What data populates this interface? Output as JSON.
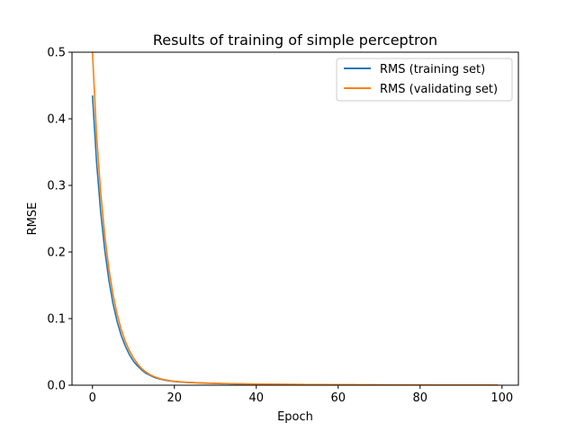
{
  "chart_data": {
    "type": "line",
    "title": "Results of training of simple perceptron",
    "xlabel": "Epoch",
    "ylabel": "RMSE",
    "xlim": [
      -5,
      104
    ],
    "ylim": [
      0,
      0.5
    ],
    "xticks": [
      0,
      20,
      40,
      60,
      80,
      100
    ],
    "yticks": [
      0.0,
      0.1,
      0.2,
      0.3,
      0.4,
      0.5
    ],
    "xtick_labels": [
      "0",
      "20",
      "40",
      "60",
      "80",
      "100"
    ],
    "ytick_labels": [
      "0.0",
      "0.1",
      "0.2",
      "0.3",
      "0.4",
      "0.5"
    ],
    "grid": false,
    "legend_position": "top-right",
    "x": [
      0,
      1,
      2,
      3,
      4,
      5,
      6,
      7,
      8,
      9,
      10,
      11,
      12,
      13,
      14,
      15,
      16,
      17,
      18,
      19,
      20,
      21,
      22,
      23,
      24,
      25,
      26,
      27,
      28,
      29,
      30,
      31,
      32,
      33,
      34,
      35,
      36,
      37,
      38,
      39,
      40,
      41,
      42,
      43,
      44,
      45,
      46,
      47,
      48,
      49,
      50,
      51,
      52,
      53,
      54,
      55,
      56,
      57,
      58,
      59,
      60,
      61,
      62,
      63,
      64,
      65,
      66,
      67,
      68,
      69,
      70,
      71,
      72,
      73,
      74,
      75,
      76,
      77,
      78,
      79,
      80,
      81,
      82,
      83,
      84,
      85,
      86,
      87,
      88,
      89,
      90,
      91,
      92,
      93,
      94,
      95,
      96,
      97,
      98,
      99
    ],
    "series": [
      {
        "name": "RMS (training set)",
        "color": "#1f77b4",
        "values": [
          0.435,
          0.335,
          0.26,
          0.203,
          0.158,
          0.123,
          0.096,
          0.075,
          0.059,
          0.046,
          0.036,
          0.029,
          0.023,
          0.018,
          0.015,
          0.012,
          0.01,
          0.0085,
          0.0072,
          0.0063,
          0.0056,
          0.005,
          0.0046,
          0.0042,
          0.0039,
          0.0036,
          0.0034,
          0.0032,
          0.003,
          0.0028,
          0.0026,
          0.0025,
          0.0023,
          0.0022,
          0.0021,
          0.002,
          0.0019,
          0.0018,
          0.0017,
          0.0016,
          0.0015,
          0.0014,
          0.0014,
          0.0013,
          0.0012,
          0.0012,
          0.0011,
          0.0011,
          0.001,
          0.001,
          0.0009,
          0.0009,
          0.0008,
          0.0008,
          0.0008,
          0.0007,
          0.0007,
          0.0007,
          0.0006,
          0.0006,
          0.0006,
          0.0006,
          0.0005,
          0.0005,
          0.0005,
          0.0005,
          0.0005,
          0.0004,
          0.0004,
          0.0004,
          0.0004,
          0.0004,
          0.0004,
          0.0003,
          0.0003,
          0.0003,
          0.0003,
          0.0003,
          0.0003,
          0.0003,
          0.0003,
          0.0003,
          0.0002,
          0.0002,
          0.0002,
          0.0002,
          0.0002,
          0.0002,
          0.0002,
          0.0002,
          0.0002,
          0.0002,
          0.0002,
          0.0002,
          0.0002,
          0.0001,
          0.0001,
          0.0001,
          0.0001,
          0.0001
        ]
      },
      {
        "name": "RMS (validating set)",
        "color": "#ff7f0e",
        "values": [
          0.5,
          0.375,
          0.29,
          0.225,
          0.175,
          0.137,
          0.107,
          0.084,
          0.066,
          0.052,
          0.041,
          0.032,
          0.025,
          0.02,
          0.016,
          0.013,
          0.0108,
          0.009,
          0.0077,
          0.0067,
          0.0059,
          0.0053,
          0.0048,
          0.0044,
          0.0041,
          0.0038,
          0.0036,
          0.0034,
          0.0032,
          0.003,
          0.0028,
          0.0027,
          0.0025,
          0.0024,
          0.0023,
          0.0022,
          0.0021,
          0.002,
          0.0019,
          0.0018,
          0.0017,
          0.0016,
          0.0016,
          0.0015,
          0.0014,
          0.0014,
          0.0013,
          0.0013,
          0.0012,
          0.0012,
          0.0011,
          0.0011,
          0.001,
          0.001,
          0.001,
          0.0009,
          0.0009,
          0.0009,
          0.0008,
          0.0008,
          0.0008,
          0.0007,
          0.0007,
          0.0007,
          0.0007,
          0.0006,
          0.0006,
          0.0006,
          0.0006,
          0.0006,
          0.0005,
          0.0005,
          0.0005,
          0.0005,
          0.0005,
          0.0005,
          0.0004,
          0.0004,
          0.0004,
          0.0004,
          0.0004,
          0.0004,
          0.0004,
          0.0004,
          0.0003,
          0.0003,
          0.0003,
          0.0003,
          0.0003,
          0.0003,
          0.0003,
          0.0003,
          0.0003,
          0.0003,
          0.0003,
          0.0003,
          0.0002,
          0.0002,
          0.0002,
          0.0002
        ]
      }
    ]
  }
}
